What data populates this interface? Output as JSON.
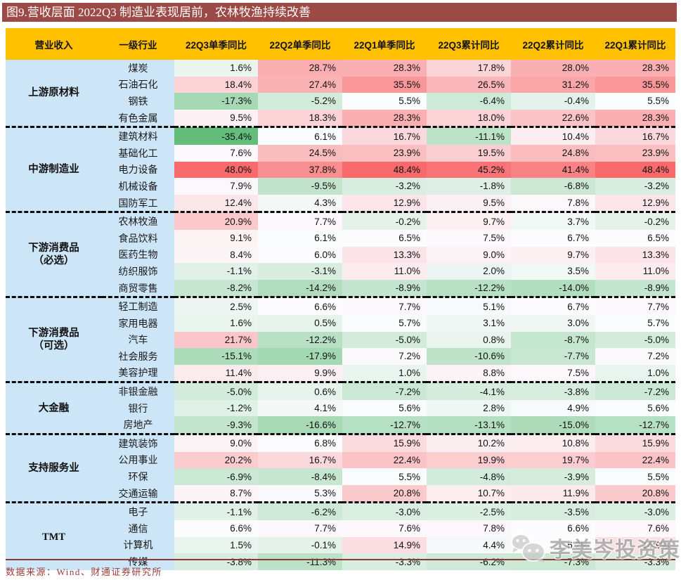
{
  "figure": {
    "title": "图9.营收层面 2022Q3 制造业表现居前，农林牧渔持续改善"
  },
  "chart_data": {
    "type": "table",
    "title": "图9.营收层面 2022Q3 制造业表现居前，农林牧渔持续改善",
    "unit": "%",
    "columns": [
      "营业收入",
      "一级行业",
      "22Q3单季同比",
      "22Q2单季同比",
      "22Q1单季同比",
      "22Q3累计同比",
      "22Q2累计同比",
      "22Q1累计同比"
    ],
    "groups": [
      {
        "sector_lines": [
          "上游原材料"
        ],
        "rows": [
          {
            "industry": "煤炭",
            "values": [
              1.6,
              28.7,
              28.3,
              17.8,
              28.0,
              28.3
            ]
          },
          {
            "industry": "石油石化",
            "values": [
              18.4,
              27.4,
              35.5,
              26.5,
              31.2,
              35.5
            ]
          },
          {
            "industry": "钢铁",
            "values": [
              -17.3,
              -5.2,
              5.5,
              -6.4,
              -0.4,
              5.5
            ]
          },
          {
            "industry": "有色金属",
            "values": [
              9.5,
              18.3,
              28.3,
              18.0,
              22.6,
              28.3
            ]
          }
        ]
      },
      {
        "sector_lines": [
          "中游制造业"
        ],
        "rows": [
          {
            "industry": "建筑材料",
            "values": [
              -35.4,
              6.1,
              16.7,
              -11.1,
              10.4,
              16.7
            ]
          },
          {
            "industry": "基础化工",
            "values": [
              7.6,
              24.5,
              23.9,
              19.5,
              24.8,
              23.9
            ]
          },
          {
            "industry": "电力设备",
            "values": [
              48.0,
              37.8,
              48.4,
              45.2,
              41.4,
              48.4
            ]
          },
          {
            "industry": "机械设备",
            "values": [
              7.9,
              -9.5,
              -3.2,
              -1.8,
              -6.8,
              -3.2
            ]
          },
          {
            "industry": "国防军工",
            "values": [
              12.4,
              4.3,
              12.9,
              9.5,
              7.8,
              12.9
            ]
          }
        ]
      },
      {
        "sector_lines": [
          "下游消费品",
          "（必选）"
        ],
        "rows": [
          {
            "industry": "农林牧渔",
            "values": [
              20.9,
              7.7,
              -0.2,
              9.7,
              3.7,
              -0.2
            ]
          },
          {
            "industry": "食品饮料",
            "values": [
              9.1,
              6.1,
              6.5,
              7.5,
              6.7,
              6.5
            ]
          },
          {
            "industry": "医药生物",
            "values": [
              8.4,
              6.0,
              13.3,
              9.0,
              9.7,
              13.3
            ]
          },
          {
            "industry": "纺织服饰",
            "values": [
              -1.1,
              -3.1,
              11.0,
              2.0,
              3.5,
              11.0
            ]
          },
          {
            "industry": "商贸零售",
            "values": [
              -8.2,
              -14.2,
              -8.9,
              -12.2,
              -14.0,
              -8.9
            ]
          }
        ]
      },
      {
        "sector_lines": [
          "下游消费品",
          "（可选）"
        ],
        "rows": [
          {
            "industry": "轻工制造",
            "values": [
              2.5,
              6.6,
              7.7,
              5.1,
              6.7,
              7.7
            ]
          },
          {
            "industry": "家用电器",
            "values": [
              1.6,
              0.5,
              5.7,
              3.1,
              3.0,
              5.7
            ]
          },
          {
            "industry": "汽车",
            "values": [
              21.7,
              -12.2,
              -5.0,
              0.8,
              -8.7,
              -5.0
            ]
          },
          {
            "industry": "社会服务",
            "values": [
              -15.1,
              -17.9,
              7.2,
              -10.6,
              -7.7,
              7.2
            ]
          },
          {
            "industry": "美容护理",
            "values": [
              11.4,
              9.9,
              1.0,
              8.8,
              7.5,
              1.0
            ]
          }
        ]
      },
      {
        "sector_lines": [
          "大金融"
        ],
        "rows": [
          {
            "industry": "非银金融",
            "values": [
              -5.0,
              0.6,
              -7.2,
              -4.1,
              -3.8,
              -7.2
            ]
          },
          {
            "industry": "银行",
            "values": [
              -1.2,
              4.1,
              5.6,
              2.8,
              4.9,
              5.6
            ]
          },
          {
            "industry": "房地产",
            "values": [
              -9.3,
              -16.6,
              -12.7,
              -13.1,
              -15.0,
              -12.7
            ]
          }
        ]
      },
      {
        "sector_lines": [
          "支持服务业"
        ],
        "rows": [
          {
            "industry": "建筑装饰",
            "values": [
              9.0,
              6.8,
              15.9,
              10.2,
              10.8,
              15.9
            ]
          },
          {
            "industry": "公用事业",
            "values": [
              20.2,
              16.7,
              22.4,
              19.9,
              19.7,
              22.4
            ]
          },
          {
            "industry": "环保",
            "values": [
              -6.9,
              -8.4,
              5.5,
              -4.8,
              -3.9,
              5.5
            ]
          },
          {
            "industry": "交通运输",
            "values": [
              8.7,
              5.3,
              20.8,
              10.7,
              11.9,
              20.8
            ]
          }
        ]
      },
      {
        "sector_lines": [
          "TMT"
        ],
        "rows": [
          {
            "industry": "电子",
            "values": [
              -1.1,
              -6.2,
              -3.0,
              -2.5,
              -3.5,
              -3.0
            ]
          },
          {
            "industry": "通信",
            "values": [
              6.6,
              7.7,
              7.6,
              7.8,
              6.6,
              7.6
            ]
          },
          {
            "industry": "计算机",
            "values": [
              1.5,
              -0.1,
              14.9,
              4.4,
              6.2,
              14.9
            ]
          },
          {
            "industry": "传媒",
            "values": [
              -3.8,
              -11.3,
              -3.3,
              -6.2,
              -7.3,
              -3.3
            ]
          }
        ]
      }
    ],
    "color_scale": {
      "min": -35.4,
      "mid": 6.4,
      "max": 48.4,
      "min_color": "#63BE7B",
      "mid_color": "#FCFCFF",
      "max_color": "#F8696B"
    },
    "legend_position": "none",
    "grid": false
  },
  "colors": {
    "title_bg": "#9C4A46",
    "title_text": "#FFFFFF",
    "header_bg": "#FFC000",
    "group_bg": "#CDE6F7",
    "bottom_rule": "#8C3A34",
    "footer_text": "#9E3B36"
  },
  "footer": {
    "source": "数据来源：Wind、财通证券研究所"
  },
  "watermark": {
    "text": "李美岑投资策略",
    "icon": "wechat-icon"
  }
}
